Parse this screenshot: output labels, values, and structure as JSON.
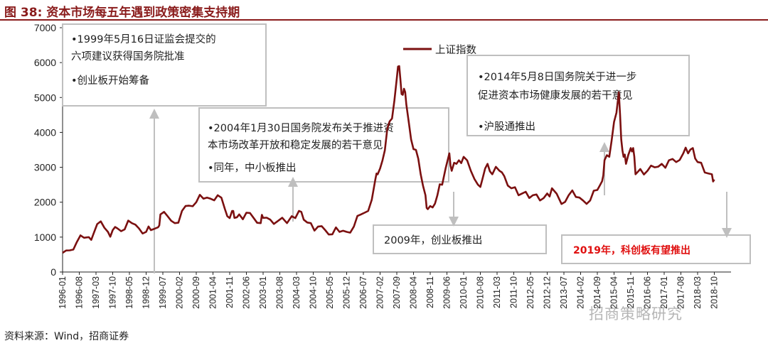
{
  "title": "图 38:  资本市场每五年遇到政策密集支持期",
  "source": "资料来源：Wind，招商证券",
  "watermark": "招商策略研究",
  "colors": {
    "line": "#7b1010",
    "title": "#8a1c1c",
    "red_text": "#e01010",
    "box_border": "#bfbfbf",
    "arrow": "#bfbfbf"
  },
  "chart_data": {
    "type": "line",
    "title": "",
    "xlabel": "",
    "ylabel": "",
    "ylim": [
      0,
      7000
    ],
    "yticks": [
      "0",
      "1000",
      "2000",
      "3000",
      "4000",
      "5000",
      "6000",
      "7000"
    ],
    "grid": false,
    "legend": {
      "position": "top-center",
      "entries": [
        "上证指数"
      ]
    },
    "x_tick_labels": [
      "1996-01",
      "1996-08",
      "1997-03",
      "1997-10",
      "1998-05",
      "1998-12",
      "1999-07",
      "2000-02",
      "2000-09",
      "2001-04",
      "2001-11",
      "2002-06",
      "2003-01",
      "2003-08",
      "2004-03",
      "2004-10",
      "2005-05",
      "2005-12",
      "2006-07",
      "2007-02",
      "2007-09",
      "2008-04",
      "2008-11",
      "2009-06",
      "2010-01",
      "2010-08",
      "2011-03",
      "2011-10",
      "2012-05",
      "2012-12",
      "2013-07",
      "2014-02",
      "2014-09",
      "2015-04",
      "2015-11",
      "2016-06",
      "2017-01",
      "2017-08",
      "2018-03",
      "2018-10"
    ],
    "series": [
      {
        "name": "上证指数",
        "x": [
          "1996-01",
          "1996-04",
          "1996-07",
          "1996-10",
          "1996-12",
          "1997-02",
          "1997-05",
          "1997-08",
          "1997-10",
          "1997-12",
          "1998-03",
          "1998-06",
          "1998-09",
          "1998-12",
          "1999-02",
          "1999-05",
          "1999-06",
          "1999-09",
          "1999-12",
          "2000-03",
          "2000-06",
          "2000-09",
          "2000-12",
          "2001-03",
          "2001-06",
          "2001-09",
          "2001-10",
          "2001-12",
          "2002-01",
          "2002-03",
          "2002-06",
          "2002-09",
          "2002-12",
          "2003-01",
          "2003-04",
          "2003-07",
          "2003-11",
          "2004-01",
          "2004-04",
          "2004-06",
          "2004-09",
          "2004-12",
          "2005-03",
          "2005-06",
          "2005-09",
          "2005-12",
          "2006-03",
          "2006-06",
          "2006-09",
          "2006-12",
          "2007-01",
          "2007-03",
          "2007-05",
          "2007-07",
          "2007-09",
          "2007-10",
          "2007-11",
          "2007-12",
          "2008-01",
          "2008-03",
          "2008-05",
          "2008-07",
          "2008-09",
          "2008-10",
          "2008-12",
          "2009-02",
          "2009-04",
          "2009-07",
          "2009-08",
          "2009-10",
          "2009-11",
          "2010-01",
          "2010-04",
          "2010-07",
          "2010-09",
          "2010-11",
          "2011-01",
          "2011-04",
          "2011-06",
          "2011-09",
          "2011-12",
          "2012-03",
          "2012-06",
          "2012-09",
          "2012-12",
          "2013-02",
          "2013-06",
          "2013-09",
          "2013-12",
          "2014-03",
          "2014-06",
          "2014-09",
          "2014-11",
          "2014-12",
          "2015-02",
          "2015-04",
          "2015-06",
          "2015-07",
          "2015-08",
          "2015-09",
          "2015-11",
          "2015-12",
          "2016-01",
          "2016-03",
          "2016-06",
          "2016-09",
          "2016-12",
          "2017-03",
          "2017-06",
          "2017-09",
          "2017-11",
          "2018-01",
          "2018-03",
          "2018-06",
          "2018-09",
          "2018-10"
        ],
        "values": [
          550,
          620,
          860,
          980,
          1000,
          1100,
          1450,
          1150,
          1200,
          1250,
          1220,
          1400,
          1250,
          1150,
          1200,
          1280,
          1650,
          1600,
          1400,
          1750,
          1900,
          2000,
          2100,
          2100,
          2200,
          1800,
          1600,
          1750,
          1550,
          1650,
          1700,
          1550,
          1400,
          1550,
          1500,
          1450,
          1400,
          1600,
          1750,
          1500,
          1400,
          1300,
          1200,
          1080,
          1150,
          1150,
          1300,
          1650,
          1750,
          2650,
          2800,
          3200,
          4100,
          4400,
          5550,
          5900,
          5100,
          5250,
          4800,
          3800,
          3500,
          2800,
          2200,
          1800,
          1850,
          2200,
          2500,
          3400,
          2900,
          3100,
          3200,
          3300,
          2900,
          2500,
          2700,
          3100,
          2800,
          2900,
          2750,
          2400,
          2200,
          2300,
          2200,
          2050,
          2250,
          2400,
          1950,
          2200,
          2150,
          2050,
          2050,
          2350,
          2600,
          3200,
          3300,
          4300,
          5150,
          3800,
          3300,
          3100,
          3550,
          3550,
          2800,
          2950,
          2900,
          3000,
          3100,
          3200,
          3150,
          3400,
          3400,
          3550,
          3150,
          2850,
          2800,
          2650
        ]
      }
    ],
    "annotations": [
      {
        "lines": [
          "•1999年5月16日证监会提交的",
          "六项建议获得国务院批准",
          "•创业板开始筹备"
        ]
      },
      {
        "lines": [
          "•2004年1月30日国务院发布关于推进资",
          "本市场改革开放和稳定发展的若干意见",
          "•同年，中小板推出"
        ]
      },
      {
        "lines": [
          "2009年，创业板推出"
        ]
      },
      {
        "lines": [
          "•2014年5月8日国务院关于进一步",
          "促进资本市场健康发展的若干意见",
          "•沪股通推出"
        ]
      },
      {
        "lines": [
          "2019年，科创板有望推出"
        ]
      }
    ]
  }
}
